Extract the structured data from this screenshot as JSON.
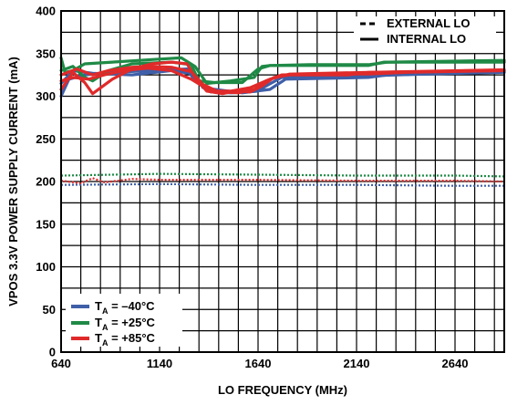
{
  "chart_data": {
    "type": "line",
    "xlabel": "LO FREQUENCY (MHz)",
    "ylabel": "VPOS 3.3V POWER SUPPLY CURRENT (mA)",
    "xlim": [
      640,
      2890
    ],
    "ylim": [
      0,
      400
    ],
    "x_ticks": [
      640,
      1140,
      1640,
      2140,
      2640
    ],
    "y_ticks": [
      0,
      50,
      100,
      150,
      200,
      250,
      300,
      350,
      400
    ],
    "grid": true,
    "x_grid_step": 100,
    "y_grid_step": 25,
    "line_style_legend": {
      "placement": "top-right",
      "entries": [
        {
          "label": "EXTERNAL LO",
          "style": "dashed"
        },
        {
          "label": "INTERNAL LO",
          "style": "solid"
        }
      ]
    },
    "temp_legend": {
      "placement": "bottom-left",
      "entries": [
        {
          "prefix": "T",
          "sub": "A",
          "suffix": " = –40°C",
          "color": "#3f5fa8"
        },
        {
          "prefix": "T",
          "sub": "A",
          "suffix": " = +25°C",
          "color": "#1f8a46"
        },
        {
          "prefix": "T",
          "sub": "A",
          "suffix": " = +85°C",
          "color": "#e02a2a"
        }
      ]
    },
    "series": [
      {
        "temp": "-40C",
        "mode": "external",
        "color": "#3f5fa8",
        "style": "dotted",
        "x": [
          640,
          1140,
          1640,
          2140,
          2640,
          2890
        ],
        "y": [
          196,
          197,
          196,
          196,
          195,
          195
        ]
      },
      {
        "temp": "+25C",
        "mode": "external",
        "color": "#1f8a46",
        "style": "dotted",
        "x": [
          640,
          1140,
          1640,
          2140,
          2640,
          2890
        ],
        "y": [
          207,
          209,
          208,
          207,
          207,
          206
        ]
      },
      {
        "temp": "+85C",
        "mode": "external",
        "color": "#e02a2a",
        "style": "dotted",
        "x": [
          640,
          740,
          800,
          860,
          1000,
          1140,
          1640,
          2140,
          2640,
          2890
        ],
        "y": [
          201,
          198,
          204,
          199,
          203,
          202,
          202,
          201,
          201,
          200
        ]
      },
      {
        "temp": "-40C",
        "mode": "internal",
        "color": "#3f5fa8",
        "style": "solid",
        "x": [
          640,
          680,
          760,
          900,
          1100,
          1280,
          1320,
          1400,
          1500,
          1640,
          1680,
          1760,
          2100,
          2200,
          2890
        ],
        "y": [
          300,
          320,
          325,
          328,
          330,
          332,
          318,
          305,
          304,
          306,
          312,
          322,
          322,
          324,
          329
        ]
      },
      {
        "temp": "-40C",
        "mode": "internal",
        "color": "#3f5fa8",
        "style": "solid",
        "x": [
          640,
          700,
          800,
          1000,
          1200,
          1320,
          1360,
          1420,
          1560,
          1700,
          1780,
          2200,
          2300,
          2890
        ],
        "y": [
          315,
          330,
          327,
          325,
          330,
          326,
          310,
          308,
          304,
          308,
          320,
          322,
          325,
          328
        ]
      },
      {
        "temp": "+25C",
        "mode": "internal",
        "color": "#1f8a46",
        "style": "solid",
        "x": [
          640,
          660,
          700,
          760,
          900,
          1100,
          1250,
          1320,
          1380,
          1500,
          1620,
          1660,
          1700,
          1800,
          2200,
          2280,
          2890
        ],
        "y": [
          345,
          328,
          330,
          338,
          340,
          343,
          345,
          335,
          315,
          318,
          322,
          335,
          336,
          336,
          336,
          340,
          340
        ]
      },
      {
        "temp": "+25C",
        "mode": "internal",
        "color": "#1f8a46",
        "style": "solid",
        "x": [
          640,
          700,
          760,
          800,
          880,
          1000,
          1200,
          1300,
          1340,
          1420,
          1560,
          1640,
          1700,
          1900,
          2200,
          2300,
          2890
        ],
        "y": [
          330,
          335,
          322,
          318,
          330,
          338,
          340,
          337,
          318,
          316,
          316,
          332,
          336,
          337,
          337,
          340,
          342
        ]
      },
      {
        "temp": "+85C",
        "mode": "internal",
        "color": "#e02a2a",
        "style": "solid",
        "x": [
          640,
          700,
          760,
          800,
          900,
          1000,
          1100,
          1200,
          1280,
          1320,
          1380,
          1460,
          1520,
          1600,
          1660,
          1720,
          1800,
          2100,
          2200,
          2890
        ],
        "y": [
          308,
          328,
          316,
          303,
          320,
          332,
          338,
          340,
          338,
          322,
          306,
          303,
          306,
          305,
          312,
          322,
          325,
          325,
          328,
          330
        ]
      },
      {
        "temp": "+85C",
        "mode": "internal",
        "color": "#e02a2a",
        "style": "solid",
        "x": [
          640,
          720,
          800,
          880,
          1000,
          1100,
          1200,
          1300,
          1360,
          1440,
          1540,
          1620,
          1680,
          1760,
          2000,
          2200,
          2400,
          2890
        ],
        "y": [
          325,
          332,
          325,
          330,
          334,
          335,
          334,
          329,
          314,
          305,
          304,
          308,
          318,
          325,
          326,
          326,
          328,
          330
        ]
      },
      {
        "temp": "+85C",
        "mode": "internal",
        "color": "#e02a2a",
        "style": "solid",
        "x": [
          640,
          700,
          780,
          860,
          960,
          1080,
          1200,
          1300,
          1400,
          1500,
          1600,
          1700,
          1800,
          2200,
          2890
        ],
        "y": [
          318,
          322,
          320,
          325,
          330,
          333,
          330,
          320,
          306,
          306,
          310,
          320,
          326,
          328,
          331
        ]
      }
    ]
  }
}
